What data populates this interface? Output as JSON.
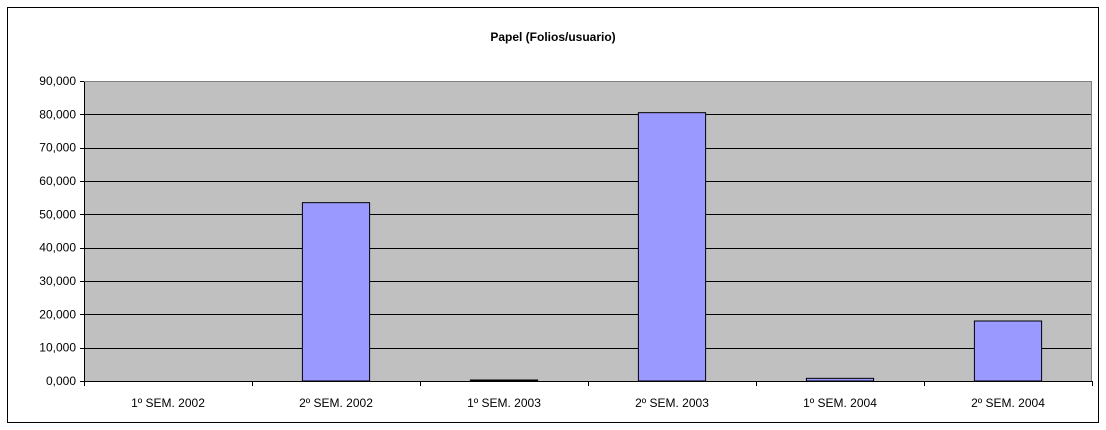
{
  "chart_data": {
    "type": "bar",
    "title": "Papel (Folios/usuario)",
    "xlabel": "",
    "ylabel": "",
    "categories": [
      "1º SEM. 2002",
      "2º SEM. 2002",
      "1º SEM. 2003",
      "2º SEM. 2003",
      "1º SEM. 2004",
      "2º SEM. 2004"
    ],
    "values": [
      0,
      53.5,
      0.3,
      80.5,
      0.8,
      18.0
    ],
    "ylim": [
      0,
      90
    ],
    "yticks": [
      0,
      10,
      20,
      30,
      40,
      50,
      60,
      70,
      80,
      90
    ],
    "ytick_labels": [
      "0,000",
      "10,000",
      "20,000",
      "30,000",
      "40,000",
      "50,000",
      "60,000",
      "70,000",
      "80,000",
      "90,000"
    ],
    "grid": true,
    "legend": "none",
    "colors": {
      "bar_fill": "#9999FF",
      "bar_stroke": "#000000",
      "plot_bg": "#C0C0C0",
      "grid": "#000000",
      "page_bg": "#FFFFFF"
    }
  }
}
